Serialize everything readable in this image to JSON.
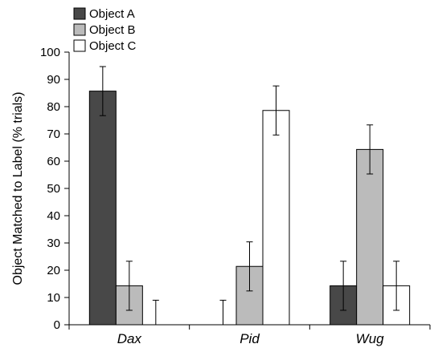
{
  "chart_data": {
    "type": "bar",
    "title": "",
    "xlabel": "",
    "ylabel": "Object Matched to Label (% trials)",
    "ylim": [
      0,
      100
    ],
    "yticks": [
      0,
      10,
      20,
      30,
      40,
      50,
      60,
      70,
      80,
      90,
      100
    ],
    "categories": [
      "Dax",
      "Pid",
      "Wug"
    ],
    "series": [
      {
        "name": "Object A",
        "color": "#484848",
        "values": [
          85.7,
          0,
          14.3
        ],
        "error": [
          9,
          9,
          9
        ]
      },
      {
        "name": "Object B",
        "color": "#bbbbbb",
        "values": [
          14.3,
          21.4,
          64.3
        ],
        "error": [
          9,
          9,
          9
        ]
      },
      {
        "name": "Object C",
        "color": "#ffffff",
        "values": [
          0,
          78.6,
          14.3
        ],
        "error": [
          9,
          9,
          9
        ]
      }
    ],
    "legend_position": "top-left",
    "grid": false,
    "error_bars": true
  }
}
